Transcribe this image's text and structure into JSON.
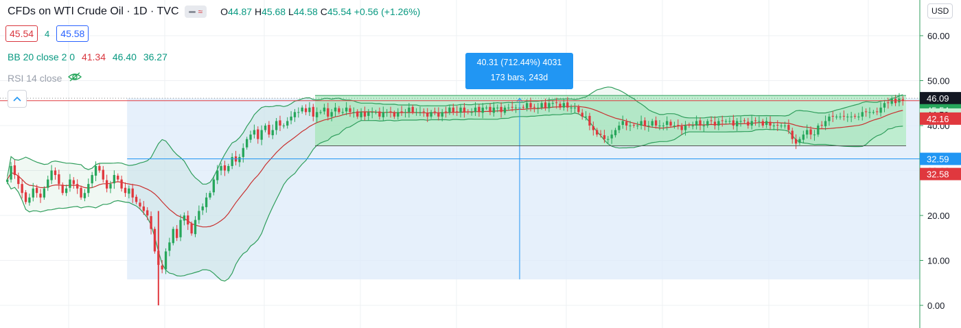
{
  "header": {
    "title": "CFDs on WTI Crude Oil · 1D · TVC",
    "ohlc": {
      "o_label": "O",
      "o": "44.87",
      "h_label": "H",
      "h": "45.68",
      "l_label": "L",
      "l": "44.58",
      "c_label": "C",
      "c": "45.54",
      "change": "+0.56 (+1.26%)"
    }
  },
  "trade": {
    "sell": "45.54",
    "spread": "4",
    "buy": "45.58"
  },
  "indicators": {
    "bb": {
      "label": "BB 20 close 2 0",
      "basis": "41.34",
      "upper": "46.40",
      "lower": "36.27"
    },
    "rsi": {
      "label": "RSI 14 close",
      "state": "hidden"
    }
  },
  "currency": "USD",
  "measure": {
    "line1": "40.31 (712.44%) 4031",
    "line2": "173 bars, 243d"
  },
  "colors": {
    "up": "#26a65b",
    "down": "#e0383e",
    "bb_band": "#2e9d5b",
    "bb_basis": "#c8302f",
    "measure": "#2196f3",
    "range_fill": "#b6ecc8"
  },
  "chart_data": {
    "type": "candlestick",
    "y_axis": {
      "ticks": [
        0,
        10,
        20,
        30,
        40,
        50,
        60
      ],
      "tick_labels": [
        "0.00",
        "10.00",
        "20.00",
        "30.00",
        "40.00",
        "50.00",
        "60.00"
      ],
      "range": [
        -0.5,
        67.5
      ]
    },
    "price_labels": [
      {
        "value": 46.09,
        "text": "46.09",
        "kind": "dark"
      },
      {
        "value": 45.54,
        "text": "45.54",
        "kind": "green"
      },
      {
        "value": 44.59,
        "text": "44.59",
        "kind": "green-light"
      },
      {
        "value": 42.16,
        "text": "42.16",
        "kind": "red"
      },
      {
        "value": 32.59,
        "text": "32.59",
        "kind": "blue"
      },
      {
        "value": 32.58,
        "text": "32.58",
        "kind": "red"
      }
    ],
    "last_price": 45.54,
    "measure_range": {
      "from": 5.78,
      "to": 46.09,
      "change": 40.31,
      "pct": 712.44,
      "ticks": 4031,
      "bars": 173,
      "days": 243
    },
    "selection_range": {
      "from": 35.5,
      "to": 46.7
    },
    "series": [
      {
        "name": "Price",
        "approx_close": [
          28,
          31,
          29,
          27,
          25,
          23,
          24,
          26,
          25,
          24,
          26,
          28,
          30,
          29,
          27,
          25,
          26,
          28,
          27,
          26,
          24,
          25,
          27,
          29,
          31,
          30,
          28,
          26,
          27,
          29,
          28,
          26,
          25,
          26,
          24,
          23,
          22,
          21,
          20,
          17,
          12,
          9,
          8,
          12,
          14,
          17,
          15,
          19,
          20,
          18,
          16,
          19,
          21,
          22,
          24,
          25,
          28,
          30,
          31,
          30,
          31,
          33,
          32,
          33,
          35,
          37,
          38,
          39,
          37,
          39,
          40,
          38,
          39,
          41,
          40,
          40,
          41,
          42,
          43,
          43,
          44,
          43,
          44,
          42,
          43,
          43,
          44,
          42,
          43,
          44,
          43,
          43,
          44,
          43,
          43,
          42,
          43,
          42,
          43,
          43,
          43,
          42,
          43,
          43,
          43,
          42,
          43,
          43,
          43,
          44,
          43,
          43,
          43,
          43,
          42,
          43,
          43,
          42,
          43,
          43,
          44,
          43,
          43,
          44,
          43,
          43,
          43,
          44,
          43,
          44,
          44,
          43,
          44,
          44,
          43,
          44,
          44,
          44,
          44,
          44,
          44,
          45,
          44,
          44,
          44,
          45,
          44,
          45,
          45,
          45,
          44,
          45,
          44,
          44,
          44,
          43,
          42,
          42,
          40,
          39,
          38,
          38,
          37,
          37,
          38,
          39,
          40,
          41,
          40,
          40,
          40,
          40,
          41,
          40,
          40,
          41,
          40,
          40,
          40,
          41,
          40,
          40,
          40,
          39,
          40,
          40,
          40,
          41,
          40,
          40,
          41,
          41,
          40,
          41,
          41,
          41,
          41,
          40,
          41,
          41,
          41,
          40,
          41,
          41,
          41,
          40,
          41,
          40,
          40,
          40,
          40,
          40,
          39,
          37,
          36,
          37,
          38,
          39,
          38,
          38,
          40,
          40,
          41,
          42,
          42,
          42,
          42,
          42,
          42,
          42,
          42,
          42,
          43,
          43,
          43,
          43,
          43,
          44,
          45,
          45,
          46,
          45,
          46,
          45.5
        ]
      }
    ]
  }
}
